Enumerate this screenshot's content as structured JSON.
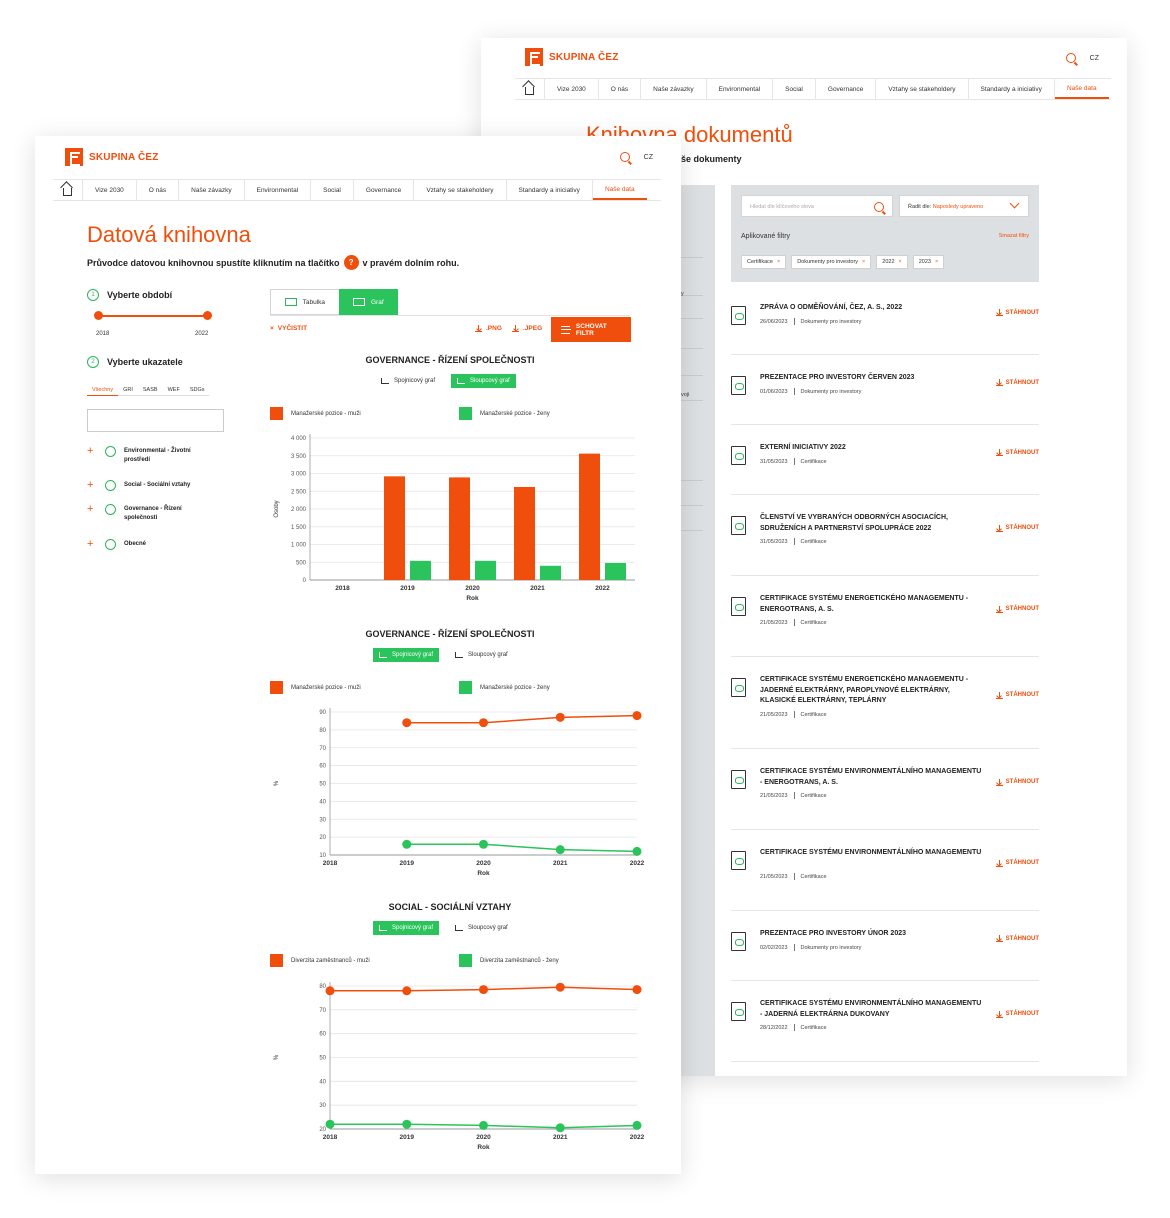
{
  "brand": {
    "name": "SKUPINA ČEZ",
    "accent": "#f04e0c",
    "green": "#2bc35b",
    "lang": "CZ"
  },
  "back": {
    "nav": [
      "Vize 2030",
      "O nás",
      "Naše závazky",
      "Environmental",
      "Social",
      "Governance",
      "Vztahy se stakeholdery",
      "Standardy a iniciativy",
      "Naše data"
    ],
    "title": "Knihovna dokumentů",
    "subtitle_fragment": "še dokumenty",
    "search_placeholder": "Hledat dle klíčového slova",
    "sort_label": "Řadit dle:",
    "sort_value": "Naposledy upraveno",
    "applied_filters_label": "Aplikované filtry",
    "clear_filters": "Smazat filtry",
    "chips": [
      "Certifikace",
      "Dokumenty pro investory",
      "2022",
      "2023"
    ],
    "left_fragment_1": "y",
    "left_fragment_2": "voji",
    "download_label": "STÁHNOUT",
    "documents": [
      {
        "title": "ZPRÁVA O ODMĚŇOVÁNÍ, ČEZ, A. S., 2022",
        "date": "26/06/2023",
        "category": "Dokumenty pro investory",
        "lines": 1
      },
      {
        "title": "PREZENTACE PRO INVESTORY ČERVEN 2023",
        "date": "01/06/2023",
        "category": "Dokumenty pro investory",
        "lines": 1
      },
      {
        "title": "EXTERNÍ INICIATIVY 2022",
        "date": "31/05/2023",
        "category": "Certifikace",
        "lines": 1
      },
      {
        "title": "ČLENSTVÍ VE VYBRANÝCH ODBORNÝCH ASOCIACÍCH, SDRUŽENÍCH A PARTNERSTVÍ SPOLUPRÁCE 2022",
        "date": "31/05/2023",
        "category": "Certifikace",
        "lines": 2
      },
      {
        "title": "CERTIFIKACE SYSTÉMU ENERGETICKÉHO MANAGEMENTU - ENERGOTRANS, A. S.",
        "date": "21/05/2023",
        "category": "Certifikace",
        "lines": 2
      },
      {
        "title": "CERTIFIKACE SYSTÉMU ENERGETICKÉHO MANAGEMENTU - JADERNÉ ELEKTRÁRNY, PAROPLYNOVÉ ELEKTRÁRNY, KLASICKÉ ELEKTRÁRNY, TEPLÁRNY",
        "date": "21/05/2023",
        "category": "Certifikace",
        "lines": 3
      },
      {
        "title": "CERTIFIKACE SYSTÉMU ENVIRONMENTÁLNÍHO MANAGEMENTU - ENERGOTRANS, A. S.",
        "date": "21/05/2023",
        "category": "Certifikace",
        "lines": 2
      },
      {
        "title": "CERTIFIKACE SYSTÉMU ENVIRONMENTÁLNÍHO MANAGEMENTU",
        "date": "21/05/2023",
        "category": "Certifikace",
        "lines": 2
      },
      {
        "title": "PREZENTACE PRO INVESTORY ÚNOR 2023",
        "date": "02/02/2023",
        "category": "Dokumenty pro investory",
        "lines": 1
      },
      {
        "title": "CERTIFIKACE SYSTÉMU ENVIRONMENTÁLNÍHO MANAGEMENTU - JADERNÁ ELEKTRÁRNA DUKOVANY",
        "date": "28/12/2022",
        "category": "Certifikace",
        "lines": 2
      }
    ]
  },
  "front": {
    "nav": [
      "Vize 2030",
      "O nás",
      "Naše závazky",
      "Environmental",
      "Social",
      "Governance",
      "Vztahy se stakeholdery",
      "Standardy a iniciativy",
      "Naše data"
    ],
    "title": "Datová knihovna",
    "subtitle_before": "Průvodce datovou knihovnou spustíte kliknutím na tlačítko",
    "help_symbol": "?",
    "subtitle_after": "v pravém dolním rohu.",
    "step1": {
      "num": "1",
      "label": "Vyberte období",
      "from": "2018",
      "to": "2022"
    },
    "step2": {
      "num": "2",
      "label": "Vyberte ukazatele"
    },
    "indicator_tabs": [
      "Všechny",
      "GRI",
      "SASB",
      "WEF",
      "SDGs"
    ],
    "indicators": [
      "Environmental - Životní prostředí",
      "Social - Sociální vztahy",
      "Governance - Řízení společnosti",
      "Obecné"
    ],
    "view_tabs": [
      "Tabulka",
      "Graf"
    ],
    "clear": "VYČISTIT",
    "png": ".PNG",
    "jpeg": ".JPEG",
    "hide_filter": "SCHOVAT FILTR",
    "toggle_line": "Spojnicový graf",
    "toggle_bar": "Sloupcový graf"
  },
  "chart_data": [
    {
      "type": "bar",
      "title": "GOVERNANCE - ŘÍZENÍ SPOLEČNOSTI",
      "categories": [
        "2018",
        "2019",
        "2020",
        "2021",
        "2022"
      ],
      "series": [
        {
          "name": "Manažerské pozice - muži",
          "color": "#f04e0c",
          "values": [
            0,
            2920,
            2890,
            2620,
            3560
          ]
        },
        {
          "name": "Manažerské pozice - ženy",
          "color": "#2bc35b",
          "values": [
            0,
            540,
            540,
            400,
            480
          ]
        }
      ],
      "xlabel": "Rok",
      "ylabel": "Osoby",
      "ylim": [
        0,
        4000
      ],
      "yticks": [
        "0",
        "500",
        "1 000",
        "1 500",
        "2 000",
        "2 500",
        "3 000",
        "3 500",
        "4 000"
      ]
    },
    {
      "type": "line",
      "title": "GOVERNANCE - ŘÍZENÍ SPOLEČNOSTI",
      "categories": [
        "2018",
        "2019",
        "2020",
        "2021",
        "2022"
      ],
      "series": [
        {
          "name": "Manažerské pozice - muži",
          "color": "#f04e0c",
          "values": [
            null,
            84,
            84,
            87,
            88
          ]
        },
        {
          "name": "Manažerské pozice - ženy",
          "color": "#2bc35b",
          "values": [
            null,
            16,
            16,
            13,
            12
          ]
        }
      ],
      "xlabel": "Rok",
      "ylabel": "%",
      "ylim": [
        10,
        90
      ],
      "yticks": [
        "10",
        "20",
        "30",
        "40",
        "50",
        "60",
        "70",
        "80",
        "90"
      ]
    },
    {
      "type": "line",
      "title": "SOCIAL - SOCIÁLNÍ VZTAHY",
      "categories": [
        "2018",
        "2019",
        "2020",
        "2021",
        "2022"
      ],
      "series": [
        {
          "name": "Diverzita zaměstnanců - muži",
          "color": "#f04e0c",
          "values": [
            78,
            78,
            78.5,
            79.5,
            78.5
          ]
        },
        {
          "name": "Diverzita zaměstnanců - ženy",
          "color": "#2bc35b",
          "values": [
            22,
            22,
            21.5,
            20.5,
            21.5
          ]
        }
      ],
      "xlabel": "Rok",
      "ylabel": "%",
      "ylim": [
        20,
        80
      ],
      "yticks": [
        "20",
        "30",
        "40",
        "50",
        "60",
        "70",
        "80"
      ]
    }
  ]
}
